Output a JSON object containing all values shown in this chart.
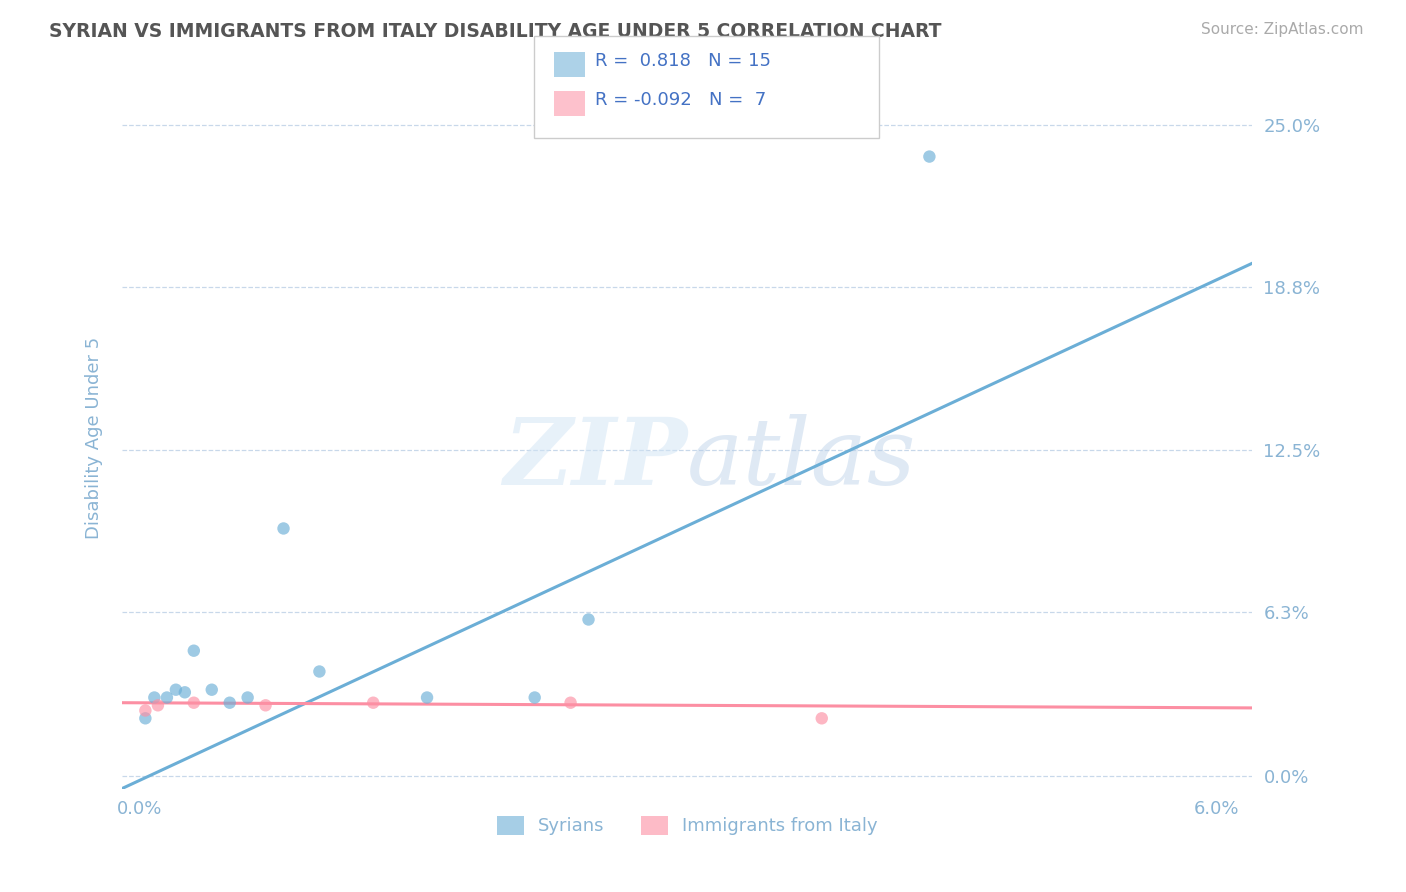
{
  "title": "SYRIAN VS IMMIGRANTS FROM ITALY DISABILITY AGE UNDER 5 CORRELATION CHART",
  "source": "Source: ZipAtlas.com",
  "ylabel": "Disability Age Under 5",
  "xlabel_syrians": "Syrians",
  "xlabel_italy": "Immigrants from Italy",
  "xlim": [
    -0.001,
    0.062
  ],
  "ylim": [
    -0.005,
    0.265
  ],
  "ytick_vals": [
    0.0,
    0.063,
    0.125,
    0.188,
    0.25
  ],
  "ytick_labels": [
    "0.0%",
    "6.3%",
    "12.5%",
    "18.8%",
    "25.0%"
  ],
  "xtick_vals": [
    0.0,
    0.06
  ],
  "xtick_labels": [
    "0.0%",
    "6.0%"
  ],
  "syrian_color": "#6baed6",
  "italy_color": "#fc8fa3",
  "axis_color": "#8ab4d4",
  "legend_R_syrians": "0.818",
  "legend_N_syrians": "15",
  "legend_R_italy": "-0.092",
  "legend_N_italy": "7",
  "syrians_x": [
    0.0003,
    0.0008,
    0.0015,
    0.002,
    0.0025,
    0.003,
    0.004,
    0.005,
    0.006,
    0.008,
    0.01,
    0.016,
    0.022,
    0.025,
    0.044
  ],
  "syrians_y": [
    0.022,
    0.03,
    0.03,
    0.033,
    0.032,
    0.048,
    0.033,
    0.028,
    0.03,
    0.095,
    0.04,
    0.03,
    0.03,
    0.06,
    0.238
  ],
  "italy_x": [
    0.0003,
    0.001,
    0.003,
    0.007,
    0.013,
    0.024,
    0.038
  ],
  "italy_y": [
    0.025,
    0.027,
    0.028,
    0.027,
    0.028,
    0.028,
    0.022
  ],
  "syrian_trend_x": [
    -0.001,
    0.062
  ],
  "syrian_trend_y": [
    -0.005,
    0.197
  ],
  "italy_trend_x": [
    -0.001,
    0.062
  ],
  "italy_trend_y": [
    0.028,
    0.026
  ],
  "bg_color": "#ffffff",
  "grid_color": "#c8d8ea",
  "scatter_alpha": 0.65,
  "scatter_size": 80,
  "trend_linewidth": 2.2
}
